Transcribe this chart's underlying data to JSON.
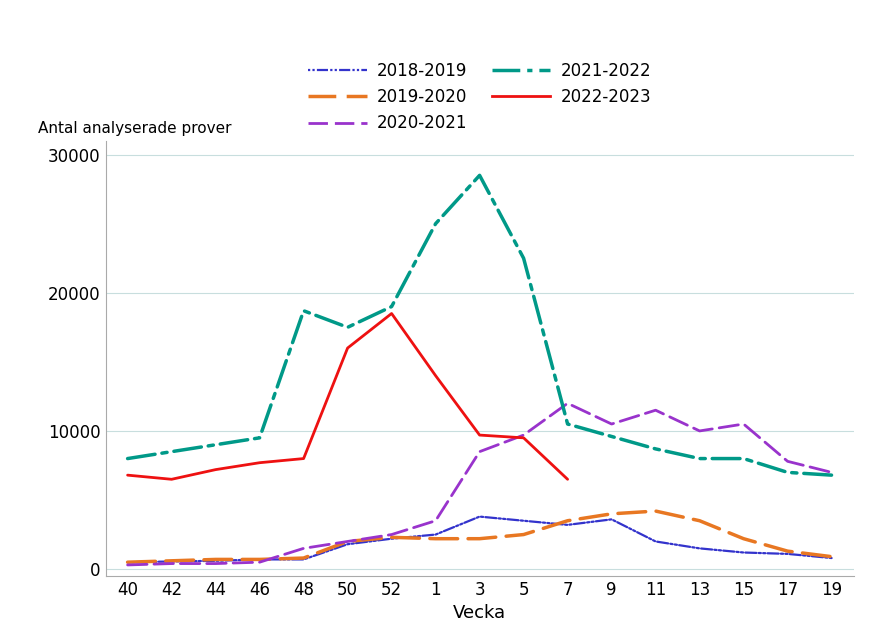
{
  "x_labels": [
    "40",
    "42",
    "44",
    "46",
    "48",
    "50",
    "52",
    "1",
    "3",
    "5",
    "7",
    "9",
    "11",
    "13",
    "15",
    "17",
    "19"
  ],
  "x_positions": [
    0,
    1,
    2,
    3,
    4,
    5,
    6,
    7,
    8,
    9,
    10,
    11,
    12,
    13,
    14,
    15,
    16
  ],
  "series": {
    "2018-2019": {
      "color": "#3333cc",
      "linewidth": 1.6,
      "values": [
        500,
        550,
        600,
        700,
        700,
        1800,
        2200,
        2500,
        3800,
        3500,
        3200,
        3600,
        2000,
        1500,
        1200,
        1100,
        800
      ]
    },
    "2019-2020": {
      "color": "#e87722",
      "linewidth": 2.5,
      "values": [
        500,
        600,
        700,
        700,
        800,
        2000,
        2300,
        2200,
        2200,
        2500,
        3500,
        4000,
        4200,
        3500,
        2200,
        1300,
        900
      ]
    },
    "2020-2021": {
      "color": "#9933cc",
      "linewidth": 2.0,
      "values": [
        300,
        400,
        400,
        500,
        1500,
        2000,
        2500,
        3500,
        8500,
        9700,
        12000,
        10500,
        11500,
        10000,
        10500,
        7800,
        7000
      ]
    },
    "2021-2022": {
      "color": "#009988",
      "linewidth": 2.5,
      "values": [
        8000,
        8500,
        9000,
        9500,
        18700,
        17500,
        19000,
        25000,
        28500,
        22500,
        10500,
        9600,
        8700,
        8000,
        8000,
        7000,
        6800
      ]
    },
    "2022-2023": {
      "color": "#ee1111",
      "linewidth": 2.0,
      "values": [
        6800,
        6500,
        7200,
        7700,
        8000,
        16000,
        18500,
        14000,
        9700,
        9500,
        6500,
        null,
        null,
        null,
        null,
        null,
        null
      ]
    }
  },
  "ylabel": "Antal analyserade prover",
  "xlabel": "Vecka",
  "ylim": [
    -500,
    31000
  ],
  "yticks": [
    0,
    10000,
    20000,
    30000
  ],
  "background_color": "#ffffff",
  "grid_color": "#c8dede"
}
